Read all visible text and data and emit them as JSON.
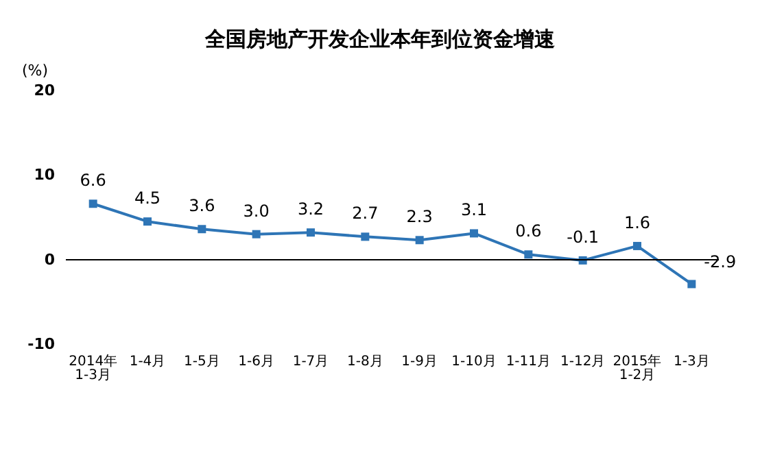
{
  "chart_data": {
    "type": "line",
    "title": "全国房地产开发企业本年到位资金增速",
    "ylabel": "(%)",
    "categories": [
      "2014年\n1-3月",
      "1-4月",
      "1-5月",
      "1-6月",
      "1-7月",
      "1-8月",
      "1-9月",
      "1-10月",
      "1-11月",
      "1-12月",
      "2015年\n1-2月",
      "1-3月"
    ],
    "series": [
      {
        "color": "#2e75b6",
        "values": [
          6.6,
          4.5,
          3.6,
          3.0,
          3.2,
          2.7,
          2.3,
          3.1,
          0.6,
          -0.1,
          1.6,
          -2.9
        ],
        "value_labels": [
          "6.6",
          "4.5",
          "3.6",
          "3.0",
          "3.2",
          "2.7",
          "2.3",
          "3.1",
          "0.6",
          "-0.1",
          "1.6",
          "-2.9"
        ]
      }
    ],
    "ylim": [
      -10,
      20
    ],
    "yticks": [
      -10,
      0,
      10,
      20
    ],
    "ref_lines": [
      {
        "axis": "y",
        "value": 0,
        "color": "#000000"
      }
    ],
    "marker": "square",
    "line_style": "solid"
  }
}
